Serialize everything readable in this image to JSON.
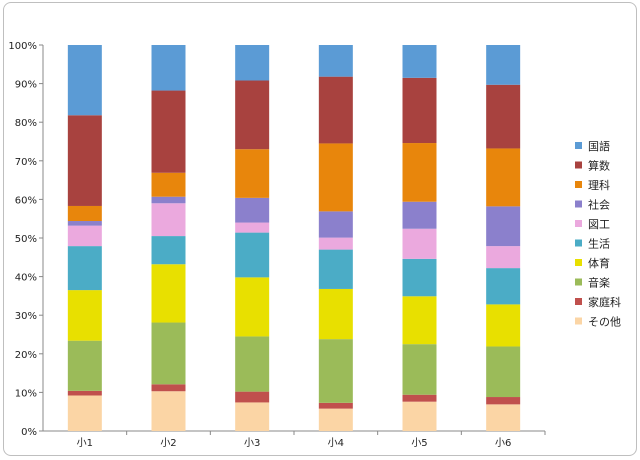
{
  "chart_data": {
    "type": "bar",
    "stacked": true,
    "percent": true,
    "categories": [
      "小1",
      "小2",
      "小3",
      "小4",
      "小5",
      "小6"
    ],
    "series": [
      {
        "name": "その他",
        "color": "#fbd5a5",
        "values": [
          9.2,
          10.3,
          7.4,
          5.8,
          7.6,
          6.9
        ]
      },
      {
        "name": "家庭科",
        "color": "#c0504d",
        "values": [
          1.2,
          1.8,
          2.8,
          1.5,
          1.8,
          1.9
        ]
      },
      {
        "name": "音楽",
        "color": "#9bbb59",
        "values": [
          13.0,
          16.0,
          14.3,
          16.5,
          13.1,
          13.1
        ]
      },
      {
        "name": "体育",
        "color": "#e8e000",
        "values": [
          13.1,
          15.1,
          15.3,
          13.0,
          12.4,
          10.9
        ]
      },
      {
        "name": "生活",
        "color": "#4bacc6",
        "values": [
          11.4,
          7.3,
          11.6,
          10.2,
          9.7,
          9.4
        ]
      },
      {
        "name": "図工",
        "color": "#eba9de",
        "values": [
          5.3,
          8.5,
          2.6,
          3.1,
          7.8,
          5.7
        ]
      },
      {
        "name": "社会",
        "color": "#8b80cc",
        "values": [
          1.2,
          1.7,
          6.4,
          6.8,
          7.0,
          10.3
        ]
      },
      {
        "name": "理科",
        "color": "#e8860c",
        "values": [
          3.9,
          6.2,
          12.6,
          17.6,
          15.2,
          15.0
        ]
      },
      {
        "name": "算数",
        "color": "#a8423f",
        "values": [
          23.5,
          21.3,
          17.8,
          17.3,
          16.9,
          16.5
        ]
      },
      {
        "name": "国語",
        "color": "#5b9bd5",
        "values": [
          18.2,
          11.8,
          9.2,
          8.2,
          8.5,
          10.3
        ]
      }
    ],
    "ylim": [
      0,
      100
    ],
    "yticks": [
      "0%",
      "10%",
      "20%",
      "30%",
      "40%",
      "50%",
      "60%",
      "70%",
      "80%",
      "90%",
      "100%"
    ],
    "legend_position": "right",
    "legend_order": [
      "国語",
      "算数",
      "理科",
      "社会",
      "図工",
      "生活",
      "体育",
      "音楽",
      "家庭科",
      "その他"
    ],
    "grid": false
  }
}
